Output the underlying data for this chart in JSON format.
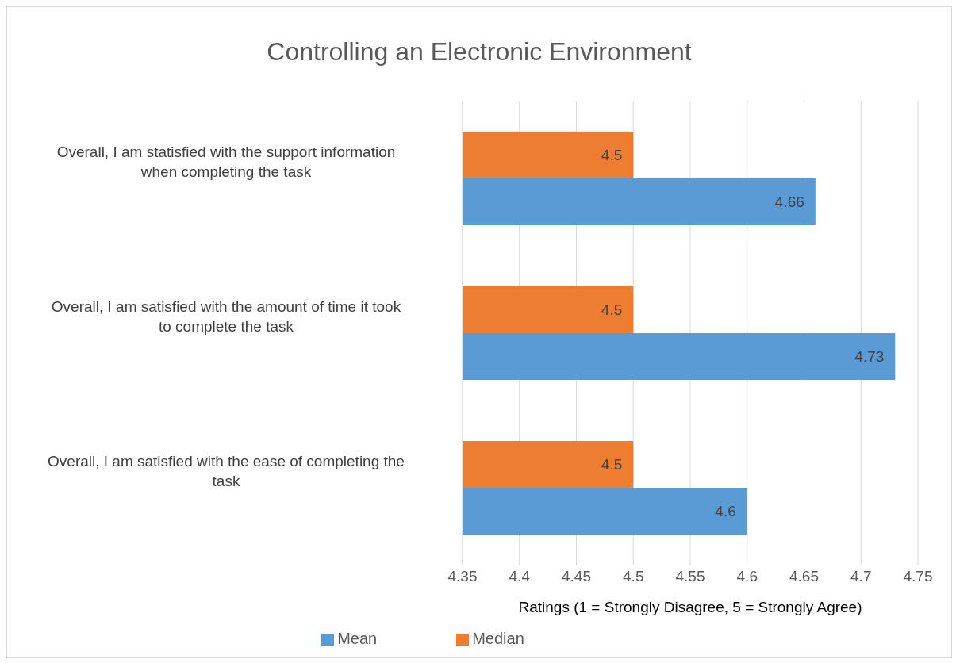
{
  "chart_data": {
    "type": "bar",
    "orientation": "horizontal",
    "title": "Controlling an Electronic Environment",
    "xlabel": "Ratings (1 = Strongly Disagree, 5 = Strongly Agree)",
    "categories": [
      "Overall, I am statisfied with the support information when completing the task",
      "Overall, I am satisfied with the amount of time it took to complete the task",
      "Overall, I am satisfied with the ease of completing the task"
    ],
    "series": [
      {
        "name": "Median",
        "color": "#ed7d31",
        "values": [
          4.5,
          4.5,
          4.5
        ]
      },
      {
        "name": "Mean",
        "color": "#5b9bd5",
        "values": [
          4.66,
          4.73,
          4.6
        ]
      }
    ],
    "xlim": [
      4.35,
      4.75
    ],
    "xticks": [
      4.35,
      4.4,
      4.45,
      4.5,
      4.55,
      4.6,
      4.65,
      4.7,
      4.75
    ],
    "grid": "x",
    "legend": "bottom",
    "data_labels": true
  }
}
